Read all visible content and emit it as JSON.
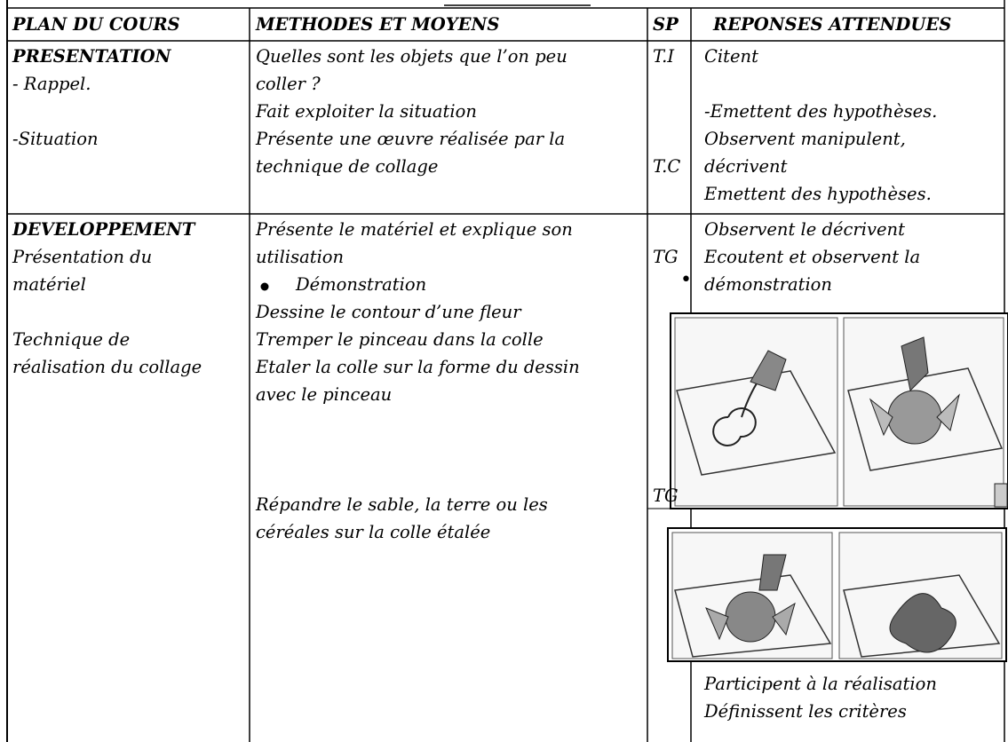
{
  "table": {
    "header": [
      "PLAN DU COURS",
      "METHODES ET MOYENS",
      "SP",
      "REPONSES ATTENDUES"
    ],
    "rows": [
      {
        "plan": [
          "PRESENTATION",
          "- Rappel.",
          "-Situation"
        ],
        "methodes": [
          "Quelles sont les objets que l’on peu",
          "coller ?",
          "Fait exploiter la situation",
          "Présente une œuvre réalisée par la",
          "technique de collage"
        ],
        "sp": [
          "T.I",
          "T.C"
        ],
        "reponses": [
          "Citent",
          "-Emettent des hypothèses.",
          "Observent manipulent,",
          "décrivent",
          "Emettent des hypothèses."
        ]
      },
      {
        "plan": [
          "DEVELOPPEMENT",
          "Présentation du",
          "matériel",
          "Technique de",
          "réalisation du collage"
        ],
        "methodes": [
          "Présente le matériel et explique son",
          "utilisation",
          "Démonstration",
          "Dessine le contour d’une fleur",
          "Tremper le pinceau dans la colle",
          "Etaler la colle sur la forme du dessin",
          "avec le pinceau",
          "Répandre le sable, la terre ou les",
          "céréales sur la colle étalée"
        ],
        "sp": [
          "TG",
          "TG"
        ],
        "reponses": [
          "Observent le décrivent",
          "Ecoutent et observent la",
          "démonstration",
          "Participent à la réalisation",
          "Définissent les critères"
        ]
      }
    ]
  }
}
